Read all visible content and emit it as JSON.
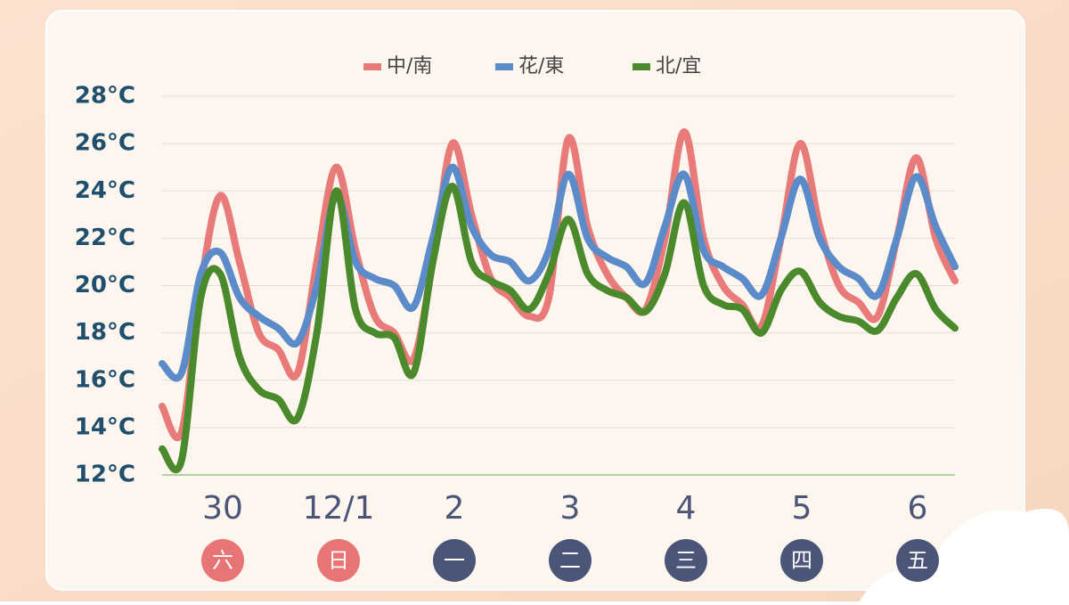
{
  "chart_data": {
    "type": "line",
    "x": [
      0,
      4,
      8,
      12,
      16,
      20,
      24,
      28,
      32,
      36,
      40,
      44,
      48,
      52,
      56,
      60,
      64,
      68,
      72,
      76,
      80,
      84,
      88,
      92,
      96,
      100,
      104,
      108,
      112,
      116,
      120,
      124,
      128,
      132,
      136,
      140,
      144,
      148,
      152,
      156,
      160,
      164
    ],
    "xlim": [
      0,
      164
    ],
    "series": [
      {
        "name": "中/南",
        "color": "#e87a7a",
        "values": [
          14.9,
          13.8,
          20,
          23.8,
          21,
          18,
          17.3,
          16.3,
          21,
          25,
          21.5,
          18.7,
          18,
          16.9,
          21,
          26,
          23,
          20.3,
          19.5,
          18.7,
          19.5,
          26.2,
          22.5,
          20.5,
          19.5,
          19,
          22,
          26.5,
          22,
          20,
          19.2,
          18.3,
          22,
          26,
          22.5,
          20,
          19.3,
          18.7,
          22,
          25.4,
          22,
          20.2
        ]
      },
      {
        "name": "花/東",
        "color": "#5b8bc9",
        "values": [
          16.7,
          16.3,
          20.5,
          21.4,
          19.5,
          18.7,
          18.2,
          17.6,
          20,
          23.8,
          21,
          20.3,
          20,
          19.1,
          22,
          25,
          22.5,
          21.3,
          21,
          20.2,
          21.5,
          24.7,
          22,
          21.2,
          20.8,
          20.1,
          22.5,
          24.7,
          21.5,
          20.8,
          20.3,
          19.6,
          22,
          24.5,
          22,
          20.8,
          20.3,
          19.6,
          22,
          24.6,
          22.5,
          20.8
        ]
      },
      {
        "name": "北/宜",
        "color": "#4a8a2c",
        "values": [
          13.1,
          12.6,
          19.5,
          20.5,
          17,
          15.6,
          15.2,
          14.4,
          18,
          24,
          19,
          18,
          17.8,
          16.3,
          21,
          24.2,
          21,
          20.2,
          19.8,
          19,
          20.5,
          22.8,
          20.5,
          19.8,
          19.5,
          18.9,
          20.5,
          23.5,
          20,
          19.2,
          19,
          18,
          19.8,
          20.6,
          19.3,
          18.7,
          18.5,
          18.1,
          19.5,
          20.5,
          19,
          18.2
        ]
      }
    ],
    "ylim": [
      12,
      28
    ],
    "yticks": [
      {
        "value": 12,
        "label": "12°C"
      },
      {
        "value": 14,
        "label": "14°C"
      },
      {
        "value": 16,
        "label": "16°C"
      },
      {
        "value": 18,
        "label": "18°C"
      },
      {
        "value": 20,
        "label": "20°C"
      },
      {
        "value": 22,
        "label": "22°C"
      },
      {
        "value": 24,
        "label": "24°C"
      },
      {
        "value": 26,
        "label": "26°C"
      },
      {
        "value": 28,
        "label": "28°C"
      }
    ],
    "grid": true,
    "categories": [
      "30",
      "12/1",
      "2",
      "3",
      "4",
      "5",
      "6"
    ],
    "weekdays": [
      "六",
      "日",
      "一",
      "二",
      "三",
      "四",
      "五"
    ],
    "weekday_colors": [
      "#e87575",
      "#e87575",
      "#4b5577",
      "#4b5577",
      "#4b5577",
      "#4b5577",
      "#4b5577"
    ]
  }
}
